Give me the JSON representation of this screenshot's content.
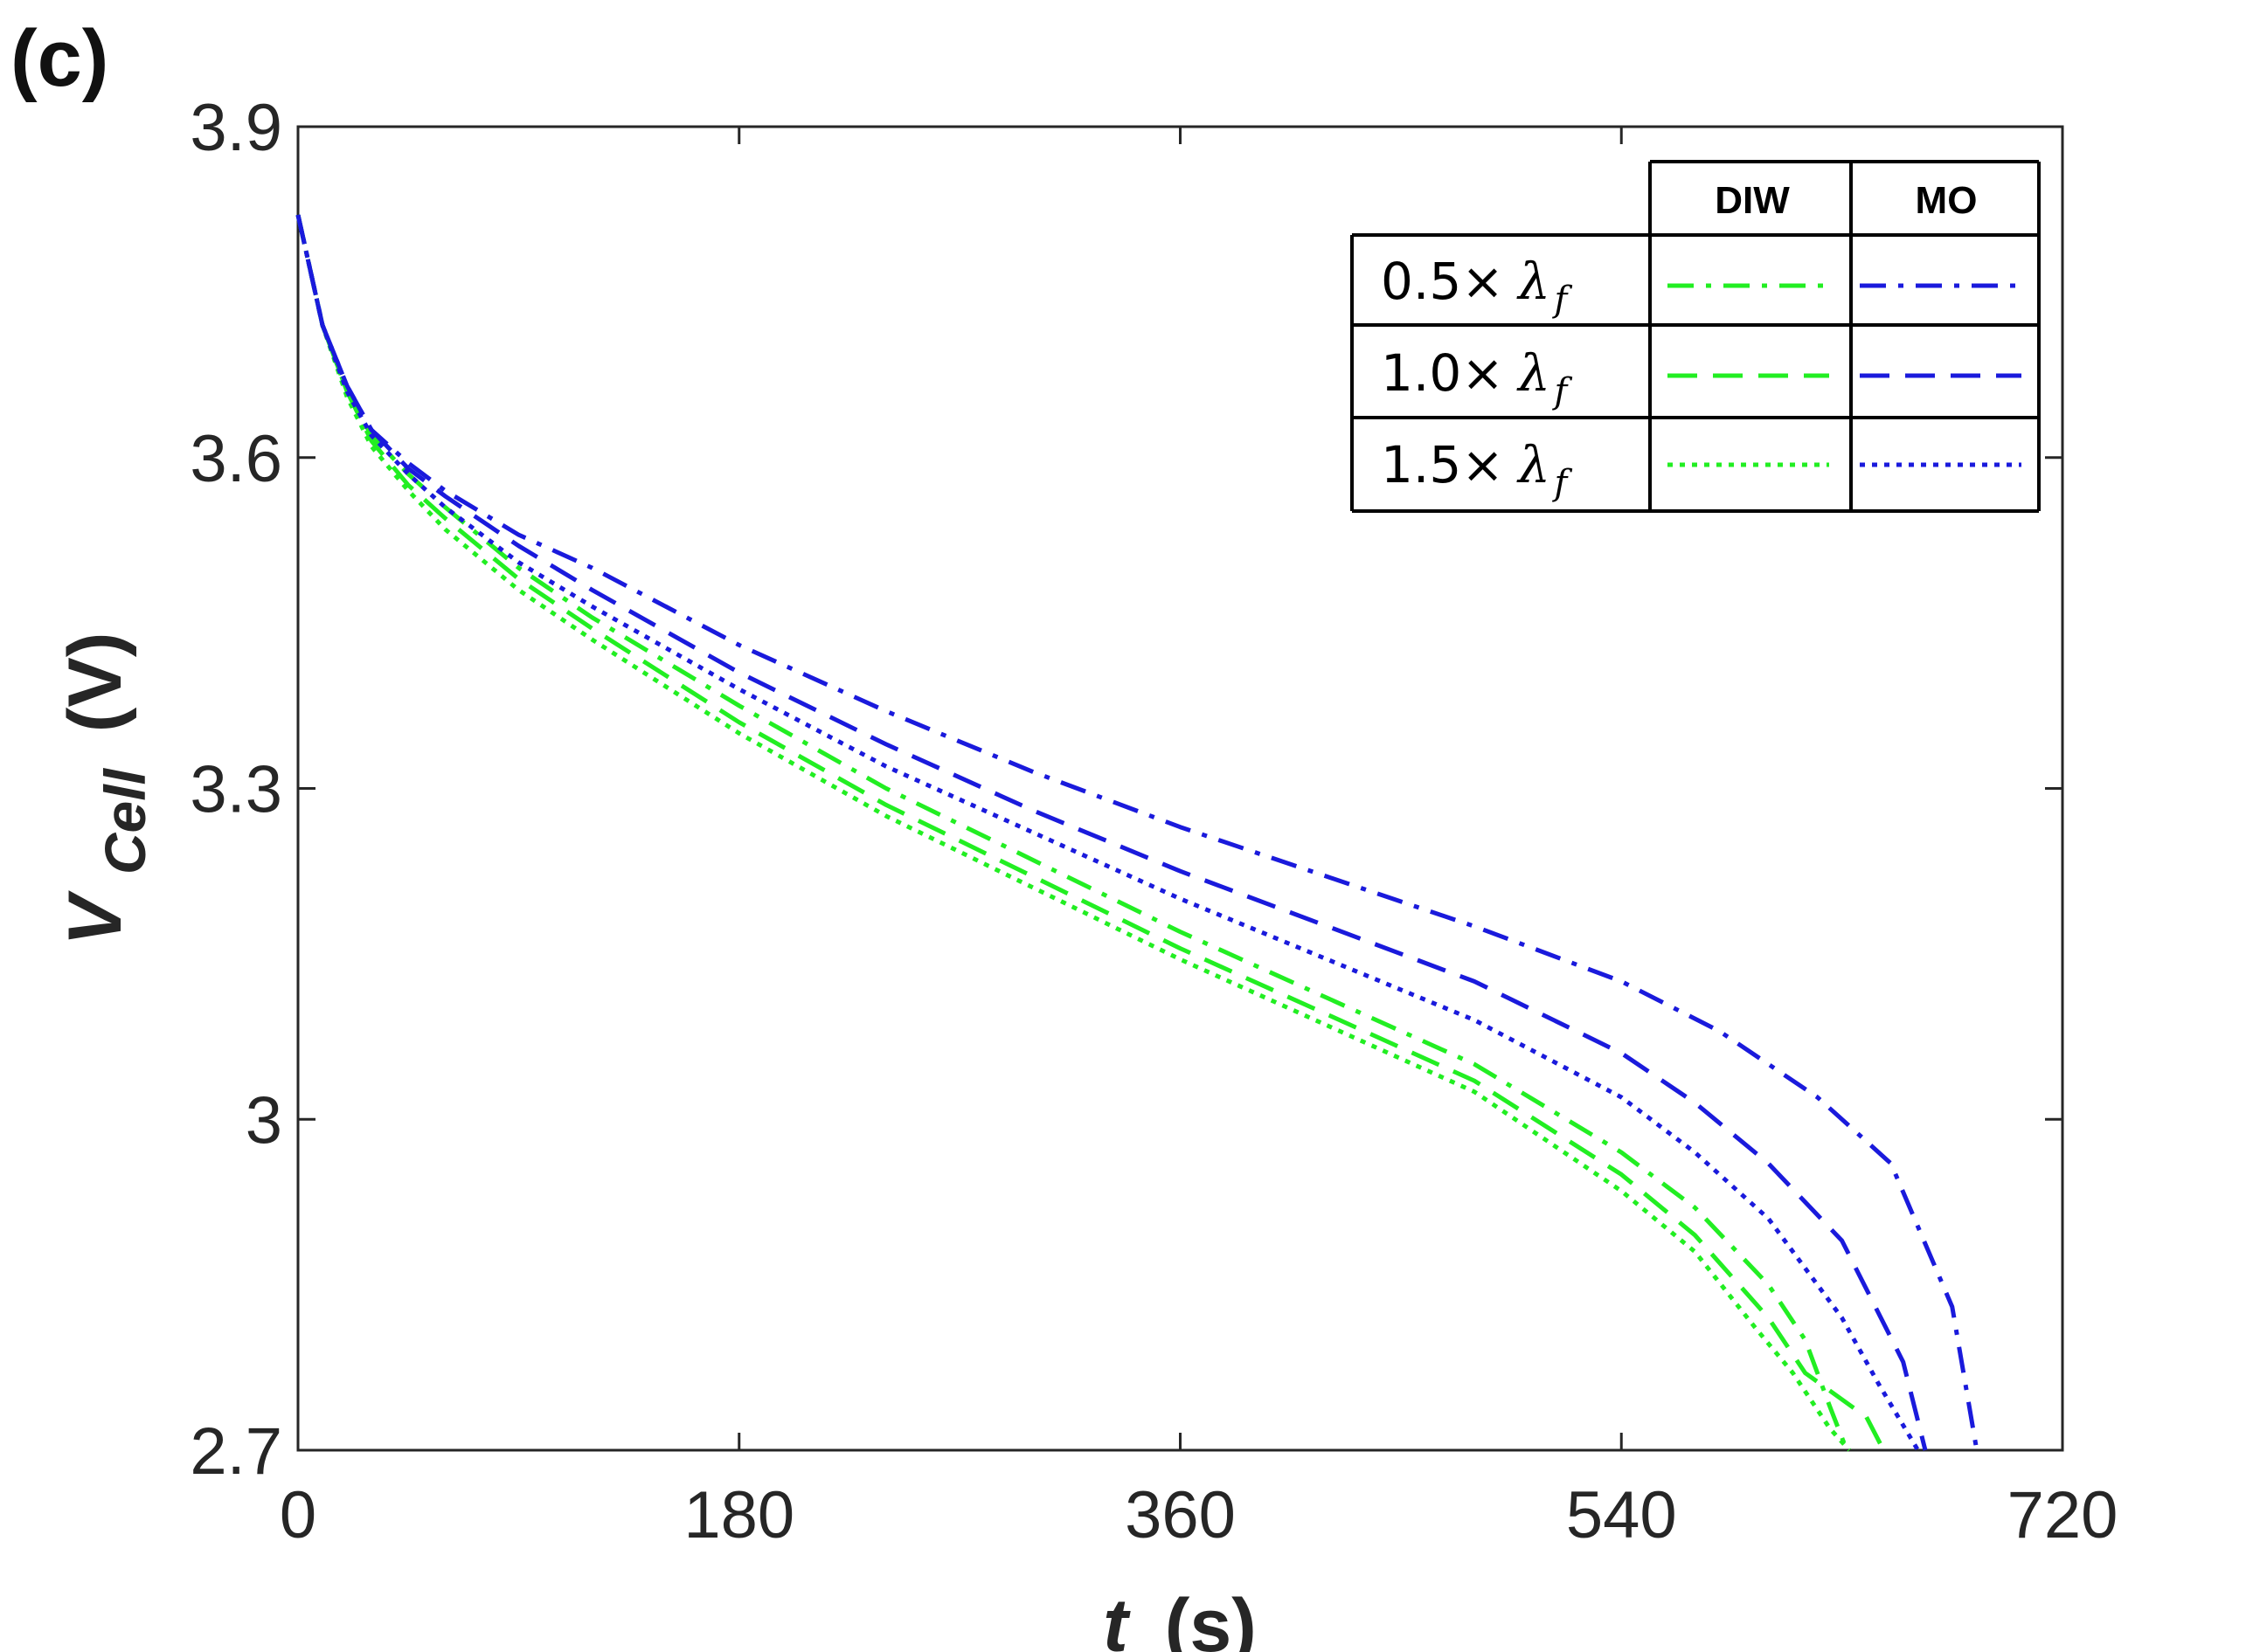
{
  "panel_label": "(c)",
  "chart_data": {
    "type": "line",
    "xlabel": "t (s)",
    "xlabel_italic": "t",
    "xlabel_unit": "(s)",
    "ylabel": "V_Cell (V)",
    "ylabel_main": "V",
    "ylabel_sub": "Cell",
    "ylabel_unit": "(V)",
    "xlim": [
      0,
      720
    ],
    "ylim": [
      2.7,
      3.9
    ],
    "xticks": [
      0,
      180,
      360,
      540,
      720
    ],
    "xtick_labels": [
      "0",
      "180",
      "360",
      "540",
      "720"
    ],
    "yticks": [
      2.7,
      3.0,
      3.3,
      3.6,
      3.9
    ],
    "ytick_labels": [
      "2.7",
      "3",
      "3.3",
      "3.6",
      "3.9"
    ],
    "grid": false,
    "legend": {
      "placement": "top-right",
      "columns": [
        "DIW",
        "MO"
      ],
      "rows": [
        {
          "factor": "0.5×",
          "symbol": "λ",
          "sub": "f",
          "style": "dashdot"
        },
        {
          "factor": "1.0×",
          "symbol": "λ",
          "sub": "f",
          "style": "dashed"
        },
        {
          "factor": "1.5×",
          "symbol": "λ",
          "sub": "f",
          "style": "dotted"
        }
      ]
    },
    "colors": {
      "DIW": "#22ee22",
      "MO": "#1a1adc"
    },
    "series": [
      {
        "fluid": "DIW",
        "factor": "0.5×",
        "style": "dashdot",
        "x": [
          0,
          10,
          20,
          30,
          45,
          60,
          90,
          120,
          180,
          240,
          300,
          360,
          420,
          480,
          540,
          570,
          600,
          615,
          625,
          632
        ],
        "y": [
          3.82,
          3.72,
          3.66,
          3.62,
          3.585,
          3.555,
          3.5,
          3.455,
          3.375,
          3.3,
          3.235,
          3.17,
          3.11,
          3.05,
          2.97,
          2.92,
          2.85,
          2.8,
          2.74,
          2.7
        ]
      },
      {
        "fluid": "DIW",
        "factor": "1.0×",
        "style": "dashed",
        "x": [
          0,
          10,
          20,
          30,
          45,
          60,
          90,
          120,
          180,
          240,
          300,
          360,
          420,
          480,
          540,
          570,
          600,
          615,
          640,
          647
        ],
        "y": [
          3.82,
          3.72,
          3.66,
          3.615,
          3.575,
          3.545,
          3.49,
          3.445,
          3.36,
          3.285,
          3.22,
          3.155,
          3.095,
          3.035,
          2.95,
          2.895,
          2.82,
          2.77,
          2.73,
          2.7
        ]
      },
      {
        "fluid": "DIW",
        "factor": "1.5×",
        "style": "dotted",
        "x": [
          0,
          10,
          20,
          30,
          45,
          60,
          90,
          120,
          180,
          240,
          300,
          360,
          420,
          480,
          540,
          570,
          595,
          610,
          625,
          633
        ],
        "y": [
          3.82,
          3.72,
          3.655,
          3.61,
          3.57,
          3.535,
          3.48,
          3.435,
          3.35,
          3.275,
          3.21,
          3.145,
          3.085,
          3.025,
          2.935,
          2.88,
          2.81,
          2.77,
          2.72,
          2.7
        ]
      },
      {
        "fluid": "MO",
        "factor": "0.5×",
        "style": "dashdot",
        "x": [
          0,
          10,
          20,
          30,
          45,
          60,
          90,
          120,
          180,
          240,
          300,
          360,
          420,
          480,
          540,
          580,
          620,
          650,
          675,
          685
        ],
        "y": [
          3.82,
          3.72,
          3.665,
          3.625,
          3.595,
          3.57,
          3.53,
          3.5,
          3.43,
          3.37,
          3.315,
          3.265,
          3.22,
          3.175,
          3.125,
          3.08,
          3.02,
          2.96,
          2.83,
          2.7
        ]
      },
      {
        "fluid": "MO",
        "factor": "1.0×",
        "style": "dashed",
        "x": [
          0,
          10,
          20,
          30,
          45,
          60,
          90,
          120,
          180,
          240,
          300,
          360,
          420,
          480,
          540,
          570,
          600,
          630,
          655,
          664
        ],
        "y": [
          3.82,
          3.72,
          3.665,
          3.625,
          3.59,
          3.565,
          3.52,
          3.48,
          3.405,
          3.34,
          3.28,
          3.225,
          3.175,
          3.125,
          3.06,
          3.015,
          2.96,
          2.89,
          2.78,
          2.7
        ]
      },
      {
        "fluid": "MO",
        "factor": "1.5×",
        "style": "dotted",
        "x": [
          0,
          10,
          20,
          30,
          45,
          60,
          90,
          120,
          180,
          240,
          300,
          360,
          420,
          480,
          540,
          570,
          600,
          630,
          645,
          661
        ],
        "y": [
          3.82,
          3.72,
          3.66,
          3.62,
          3.585,
          3.555,
          3.505,
          3.465,
          3.39,
          3.32,
          3.26,
          3.2,
          3.145,
          3.09,
          3.02,
          2.97,
          2.91,
          2.82,
          2.76,
          2.7
        ]
      }
    ]
  }
}
